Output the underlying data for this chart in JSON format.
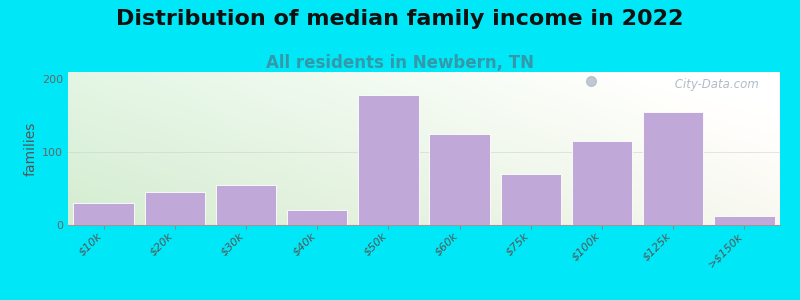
{
  "title": "Distribution of median family income in 2022",
  "subtitle": "All residents in Newbern, TN",
  "ylabel": "families",
  "categories": [
    "$10k",
    "$20k",
    "$30k",
    "$40k",
    "$50k",
    "$60k",
    "$75k",
    "$100k",
    "$125k",
    ">$150k"
  ],
  "values": [
    30,
    45,
    55,
    20,
    178,
    125,
    70,
    115,
    155,
    13
  ],
  "bar_color": "#c0a8d8",
  "bar_edgecolor": "#ffffff",
  "ylim": [
    0,
    210
  ],
  "yticks": [
    0,
    100,
    200
  ],
  "background_outer": "#00e8f8",
  "bg_left_color": "#d4ecd0",
  "bg_right_color": "#f0f5e8",
  "bg_top_color": "#f0f0f8",
  "title_fontsize": 16,
  "subtitle_fontsize": 12,
  "subtitle_color": "#3399aa",
  "ylabel_fontsize": 10,
  "tick_label_fontsize": 8,
  "watermark_text": " City-Data.com",
  "watermark_color": "#b0bcc8"
}
